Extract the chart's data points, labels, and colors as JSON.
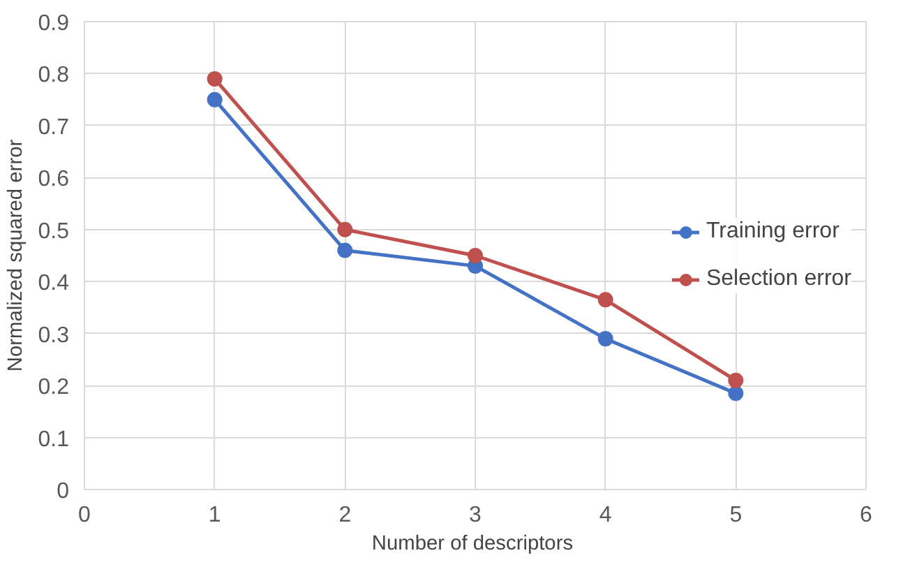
{
  "chart_data": {
    "type": "line",
    "xlabel": "Number  of descriptors",
    "ylabel": "Normalized squared error",
    "x": [
      1,
      2,
      3,
      4,
      5
    ],
    "series": [
      {
        "name": "Training error",
        "color": "#4472c4",
        "values": [
          0.75,
          0.46,
          0.43,
          0.29,
          0.185
        ]
      },
      {
        "name": "Selection error",
        "color": "#c0504d",
        "values": [
          0.79,
          0.5,
          0.45,
          0.365,
          0.21
        ]
      }
    ],
    "xlim": [
      0,
      6
    ],
    "xticks": [
      0,
      1,
      2,
      3,
      4,
      5,
      6
    ],
    "ylim": [
      0,
      0.9
    ],
    "yticks": [
      0,
      0.1,
      0.2,
      0.3,
      0.4,
      0.5,
      0.6,
      0.7,
      0.8,
      0.9
    ],
    "grid": true,
    "legend": "right",
    "marker": "circle",
    "line_style": "solid"
  }
}
